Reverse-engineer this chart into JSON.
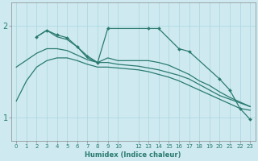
{
  "xlabel": "Humidex (Indice chaleur)",
  "background_color": "#ceeaf0",
  "grid_color": "#b0d8e0",
  "line_color": "#2a7a6f",
  "xlim": [
    -0.5,
    23.5
  ],
  "ylim": [
    0.75,
    2.25
  ],
  "yticks": [
    1,
    2
  ],
  "xtick_labels": [
    "0",
    "1",
    "2",
    "3",
    "4",
    "5",
    "6",
    "7",
    "8",
    "9",
    "10",
    "12",
    "13",
    "14",
    "15",
    "16",
    "17",
    "18",
    "19",
    "20",
    "21",
    "22",
    "23"
  ],
  "xtick_pos": [
    0,
    1,
    2,
    3,
    4,
    5,
    6,
    7,
    8,
    9,
    10,
    12,
    13,
    14,
    15,
    16,
    17,
    18,
    19,
    20,
    21,
    22,
    23
  ],
  "series": [
    {
      "x": [
        0,
        1,
        2,
        3,
        4,
        5,
        6,
        7,
        8,
        9,
        10,
        12,
        13,
        14,
        15,
        16,
        17,
        18,
        19,
        20,
        21,
        22,
        23
      ],
      "y": [
        1.18,
        1.4,
        1.55,
        1.62,
        1.65,
        1.65,
        1.62,
        1.58,
        1.55,
        1.55,
        1.54,
        1.52,
        1.5,
        1.47,
        1.44,
        1.4,
        1.35,
        1.3,
        1.25,
        1.2,
        1.15,
        1.1,
        1.08
      ],
      "marker": false
    },
    {
      "x": [
        2,
        3,
        4,
        5,
        6,
        7,
        8,
        9,
        13,
        14,
        16,
        17,
        20,
        21,
        22,
        23
      ],
      "y": [
        1.88,
        1.95,
        1.9,
        1.87,
        1.77,
        1.67,
        1.6,
        1.97,
        1.97,
        1.97,
        1.75,
        1.72,
        1.42,
        1.3,
        1.1,
        0.98
      ],
      "marker": true
    },
    {
      "x": [
        2,
        3,
        4,
        5,
        6,
        7,
        8,
        9,
        10,
        12,
        13,
        14,
        15,
        16,
        17,
        18,
        19,
        20,
        21,
        22,
        23
      ],
      "y": [
        1.88,
        1.95,
        1.88,
        1.85,
        1.77,
        1.65,
        1.6,
        1.65,
        1.62,
        1.62,
        1.62,
        1.6,
        1.57,
        1.52,
        1.47,
        1.4,
        1.35,
        1.28,
        1.22,
        1.17,
        1.12
      ],
      "marker": false
    },
    {
      "x": [
        0,
        2,
        3,
        4,
        5,
        6,
        7,
        8,
        9,
        10,
        12,
        13,
        14,
        15,
        16,
        17,
        18,
        19,
        20,
        21,
        22,
        23
      ],
      "y": [
        1.55,
        1.7,
        1.75,
        1.75,
        1.73,
        1.68,
        1.63,
        1.6,
        1.6,
        1.58,
        1.56,
        1.54,
        1.52,
        1.49,
        1.46,
        1.42,
        1.36,
        1.3,
        1.24,
        1.2,
        1.16,
        1.12
      ],
      "marker": false
    }
  ]
}
